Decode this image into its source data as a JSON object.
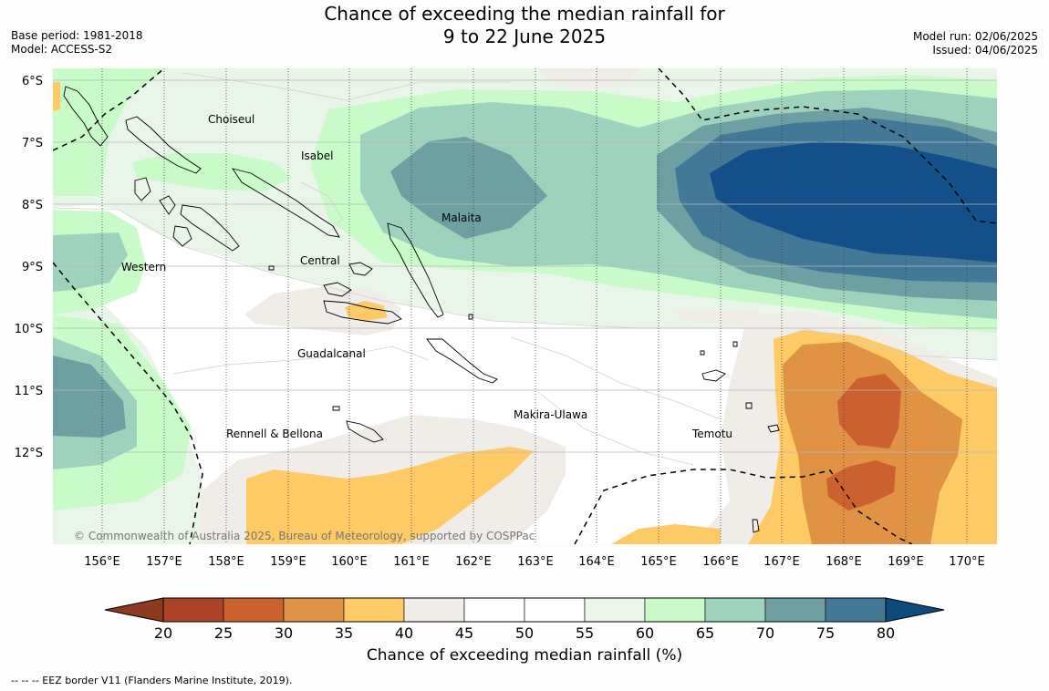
{
  "header": {
    "title_line1": "Chance of exceeding the median rainfall for",
    "title_line2": "9 to 22 June 2025",
    "base_period": "Base period: 1981-2018",
    "model": "Model: ACCESS-S2",
    "model_run": "Model run: 02/06/2025",
    "issued": "Issued: 04/06/2025"
  },
  "map": {
    "lat_labels": [
      "6°S",
      "7°S",
      "8°S",
      "9°S",
      "10°S",
      "11°S",
      "12°S"
    ],
    "lon_labels": [
      "156°E",
      "157°E",
      "158°E",
      "159°E",
      "160°E",
      "161°E",
      "162°E",
      "163°E",
      "164°E",
      "165°E",
      "166°E",
      "167°E",
      "168°E",
      "169°E",
      "170°E"
    ],
    "provinces": {
      "choiseul": "Choiseul",
      "isabel": "Isabel",
      "malaita": "Malaita",
      "western": "Western",
      "central": "Central",
      "guadalcanal": "Guadalcanal",
      "makira": "Makira-Ulawa",
      "rennell": "Rennell & Bellona",
      "temotu": "Temotu"
    },
    "copyright": "© Commonwealth of Australia 2025, Bureau of Meteorology, supported by COSPPac"
  },
  "colorbar": {
    "ticks": [
      "20",
      "25",
      "30",
      "35",
      "40",
      "45",
      "50",
      "55",
      "60",
      "65",
      "70",
      "75",
      "80"
    ],
    "colors": [
      "#ac4329",
      "#cc6130",
      "#e09345",
      "#fdca66",
      "#f0ece8",
      "#ffffff",
      "#ffffff",
      "#eaf5ea",
      "#c9fbc9",
      "#9ed2bd",
      "#6e9fa2",
      "#437997",
      "#124f8b"
    ],
    "under_color": "#8e3a21",
    "over_color": "#0f4a7d",
    "title": "Chance of exceeding median rainfall (%)"
  },
  "footer": "--  --  -- EEZ border V11 (Flanders Marine Institute, 2019)."
}
